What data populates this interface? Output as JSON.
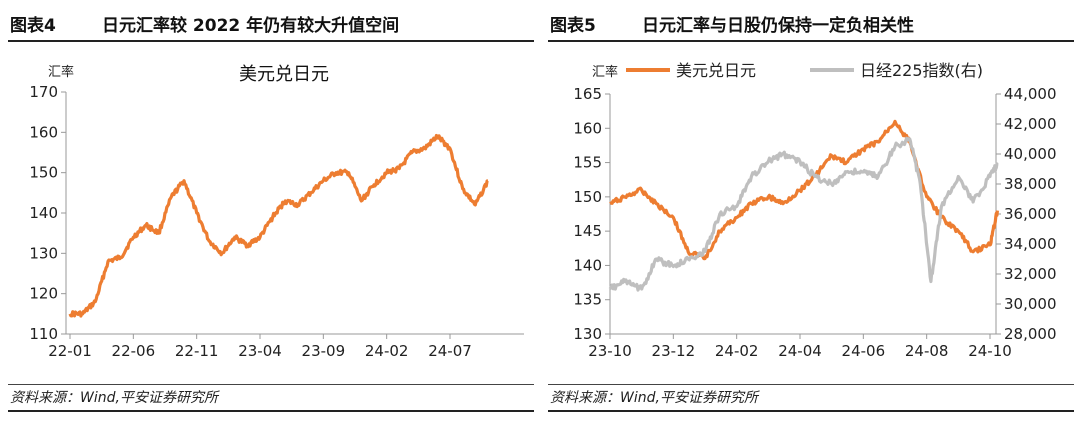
{
  "panels": [
    {
      "figure_label": "图表4",
      "title": "日元汇率较 2022 年仍有较大升值空间",
      "source": "资料来源：Wind,平安证券研究所"
    },
    {
      "figure_label": "图表5",
      "title": "日元汇率与日股仍保持一定负相关性",
      "source": "资料来源：Wind,平安证券研究所"
    }
  ],
  "colors": {
    "orange": "#ED7D31",
    "gray": "#BFBFBF",
    "axis": "#999999"
  },
  "chart_data": [
    {
      "type": "line",
      "title": "美元兑日元",
      "ylabel": "汇率",
      "ylim": [
        110,
        170
      ],
      "yticks": [
        110,
        120,
        130,
        140,
        150,
        160,
        170
      ],
      "xticks": [
        "22-01",
        "22-06",
        "22-11",
        "23-04",
        "23-09",
        "24-02",
        "24-07"
      ],
      "x_range": [
        "2022-01",
        "2024-10"
      ],
      "series": [
        {
          "name": "美元兑日元",
          "color": "#ED7D31",
          "x": [
            "2022-01",
            "2022-02",
            "2022-03",
            "2022-04",
            "2022-05",
            "2022-06",
            "2022-07",
            "2022-08",
            "2022-09",
            "2022-10",
            "2022-11",
            "2022-12",
            "2023-01",
            "2023-02",
            "2023-03",
            "2023-04",
            "2023-05",
            "2023-06",
            "2023-07",
            "2023-08",
            "2023-09",
            "2023-10",
            "2023-11",
            "2023-12",
            "2024-01",
            "2024-02",
            "2024-03",
            "2024-04",
            "2024-05",
            "2024-06",
            "2024-07",
            "2024-08",
            "2024-09",
            "2024-10"
          ],
          "values": [
            115,
            115,
            118,
            128,
            129,
            134,
            137,
            135,
            144,
            148,
            140,
            133,
            130,
            134,
            132,
            134,
            139,
            143,
            142,
            145,
            148,
            150,
            150,
            143,
            147,
            150,
            151,
            155,
            156,
            159,
            156,
            146,
            142,
            148
          ]
        }
      ]
    },
    {
      "type": "line",
      "legend_position": "top",
      "ylabel_left": "汇率",
      "ylim_left": [
        130,
        165
      ],
      "yticks_left": [
        130,
        135,
        140,
        145,
        150,
        155,
        160,
        165
      ],
      "ylim_right": [
        28000,
        44000
      ],
      "yticks_right": [
        "28,000",
        "30,000",
        "32,000",
        "34,000",
        "36,000",
        "38,000",
        "40,000",
        "42,000",
        "44,000"
      ],
      "xticks": [
        "23-10",
        "23-12",
        "24-02",
        "24-04",
        "24-06",
        "24-08",
        "24-10"
      ],
      "x_range": [
        "2023-10",
        "2024-10"
      ],
      "series": [
        {
          "name": "美元兑日元",
          "axis": "left",
          "color": "#ED7D31",
          "x": [
            "2023-10-01",
            "2023-10-15",
            "2023-11-01",
            "2023-11-15",
            "2023-12-01",
            "2023-12-15",
            "2024-01-01",
            "2024-01-15",
            "2024-02-01",
            "2024-02-15",
            "2024-03-01",
            "2024-03-15",
            "2024-04-01",
            "2024-04-15",
            "2024-05-01",
            "2024-05-15",
            "2024-06-01",
            "2024-06-15",
            "2024-07-01",
            "2024-07-15",
            "2024-08-01",
            "2024-08-15",
            "2024-09-01",
            "2024-09-15",
            "2024-10-01",
            "2024-10-08"
          ],
          "values": [
            149,
            150,
            151,
            149,
            147,
            142,
            141,
            145,
            147,
            149,
            150,
            149,
            151,
            153,
            156,
            155,
            157,
            158,
            161,
            158,
            150,
            147,
            145,
            142,
            143,
            148
          ]
        },
        {
          "name": "日经225指数(右)",
          "axis": "right",
          "color": "#BFBFBF",
          "x": [
            "2023-10-01",
            "2023-10-15",
            "2023-11-01",
            "2023-11-15",
            "2023-12-01",
            "2023-12-15",
            "2024-01-01",
            "2024-01-15",
            "2024-02-01",
            "2024-02-15",
            "2024-03-01",
            "2024-03-15",
            "2024-04-01",
            "2024-04-15",
            "2024-05-01",
            "2024-05-15",
            "2024-06-01",
            "2024-06-15",
            "2024-07-01",
            "2024-07-15",
            "2024-07-25",
            "2024-08-05",
            "2024-08-15",
            "2024-09-01",
            "2024-09-15",
            "2024-10-01",
            "2024-10-08"
          ],
          "values": [
            31000,
            31500,
            31000,
            33000,
            32500,
            33000,
            33500,
            36000,
            36500,
            38500,
            39500,
            40000,
            39500,
            38500,
            38000,
            38800,
            38800,
            38500,
            40500,
            41000,
            38000,
            31500,
            36500,
            38500,
            36800,
            38500,
            39300
          ]
        }
      ]
    }
  ]
}
